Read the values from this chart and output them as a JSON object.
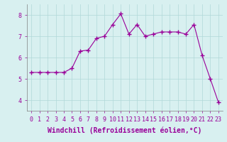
{
  "x": [
    0,
    1,
    2,
    3,
    4,
    5,
    6,
    7,
    8,
    9,
    10,
    11,
    12,
    13,
    14,
    15,
    16,
    17,
    18,
    19,
    20,
    21,
    22,
    23
  ],
  "y": [
    5.3,
    5.3,
    5.3,
    5.3,
    5.3,
    5.5,
    6.3,
    6.35,
    6.9,
    7.0,
    7.55,
    8.05,
    7.1,
    7.55,
    7.0,
    7.1,
    7.2,
    7.2,
    7.2,
    7.1,
    7.55,
    6.1,
    5.0,
    3.9
  ],
  "line_color": "#990099",
  "marker": "+",
  "marker_size": 4,
  "background_color": "#d8f0f0",
  "grid_color": "#b0d8d8",
  "xlabel": "Windchill (Refroidissement éolien,°C)",
  "xlabel_fontsize": 7,
  "yticks": [
    4,
    5,
    6,
    7,
    8
  ],
  "xtick_labels": [
    "0",
    "1",
    "2",
    "3",
    "4",
    "5",
    "6",
    "7",
    "8",
    "9",
    "10",
    "11",
    "12",
    "13",
    "14",
    "15",
    "16",
    "17",
    "18",
    "19",
    "20",
    "21",
    "22",
    "23"
  ],
  "ylim": [
    3.5,
    8.5
  ],
  "xlim": [
    -0.5,
    23.5
  ],
  "tick_fontsize": 6,
  "line_width": 0.8
}
